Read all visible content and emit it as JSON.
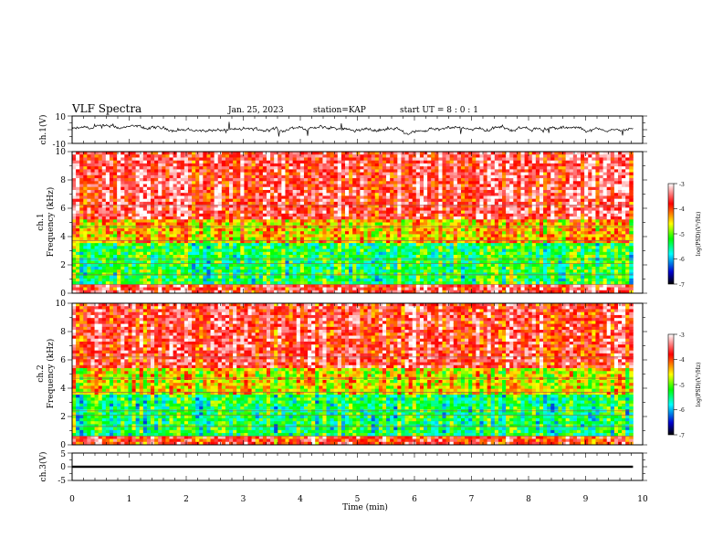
{
  "header": {
    "title": "VLF Spectra",
    "date": "Jan. 25, 2023",
    "station": "station=KAP",
    "start": "start UT = 8 : 0 : 1"
  },
  "chart_data": [
    {
      "type": "line",
      "panel": "ch1-waveform",
      "ylabel": "ch.1(V)",
      "ylim": [
        -10,
        10
      ],
      "yticks": [
        "10",
        "-10"
      ],
      "xlim": [
        0,
        10
      ],
      "series": [
        {
          "values_summary": {
            "mean": 0.3,
            "amplitude": 2.5
          }
        }
      ]
    },
    {
      "type": "heatmap",
      "panel": "ch1-spectrogram",
      "ylabel": "ch.1",
      "ylabel2": "Frequency (kHz)",
      "ylim": [
        0,
        10
      ],
      "yticks": [
        "0",
        "2",
        "4",
        "6",
        "8",
        "10"
      ],
      "xlim": [
        0,
        10
      ],
      "data_end_min": 9.83,
      "colorbar": {
        "label": "log(PSD)(V²/Hz)",
        "range": [
          -7,
          -3
        ],
        "ticks": [
          "-3",
          "-4",
          "-5",
          "-6",
          "-7"
        ]
      },
      "bands_kHz": [
        {
          "range": [
            0,
            0.6
          ],
          "level": -3.6
        },
        {
          "range": [
            0.6,
            3.5
          ],
          "level": -5.3
        },
        {
          "range": [
            3.5,
            5.2
          ],
          "level": -4.4
        },
        {
          "range": [
            5.2,
            10
          ],
          "level": -3.6
        }
      ]
    },
    {
      "type": "heatmap",
      "panel": "ch2-spectrogram",
      "ylabel": "ch.2",
      "ylabel2": "Frequency (kHz)",
      "ylim": [
        0,
        10
      ],
      "yticks": [
        "0",
        "2",
        "4",
        "6",
        "8",
        "10"
      ],
      "xlim": [
        0,
        10
      ],
      "data_end_min": 9.83,
      "colorbar": {
        "label": "log(PSD)(V²/Hz)",
        "range": [
          -7,
          -3
        ],
        "ticks": [
          "-3",
          "-4",
          "-5",
          "-6",
          "-7"
        ]
      },
      "bands_kHz": [
        {
          "range": [
            0,
            0.6
          ],
          "level": -3.8
        },
        {
          "range": [
            0.6,
            3.6
          ],
          "level": -5.4
        },
        {
          "range": [
            3.6,
            5.5
          ],
          "level": -4.6
        },
        {
          "range": [
            5.5,
            10
          ],
          "level": -3.7
        }
      ]
    },
    {
      "type": "line",
      "panel": "ch3-waveform",
      "ylabel": "ch.3(V)",
      "ylim": [
        -5,
        5
      ],
      "yticks": [
        "5",
        "0",
        "-5"
      ],
      "xlim": [
        0,
        10
      ],
      "xlabel": "Time (min)",
      "xticks": [
        "0",
        "1",
        "2",
        "3",
        "4",
        "5",
        "6",
        "7",
        "8",
        "9",
        "10"
      ],
      "series": [
        {
          "values_summary": {
            "mean": 0.0,
            "amplitude": 0.4
          }
        }
      ]
    }
  ]
}
